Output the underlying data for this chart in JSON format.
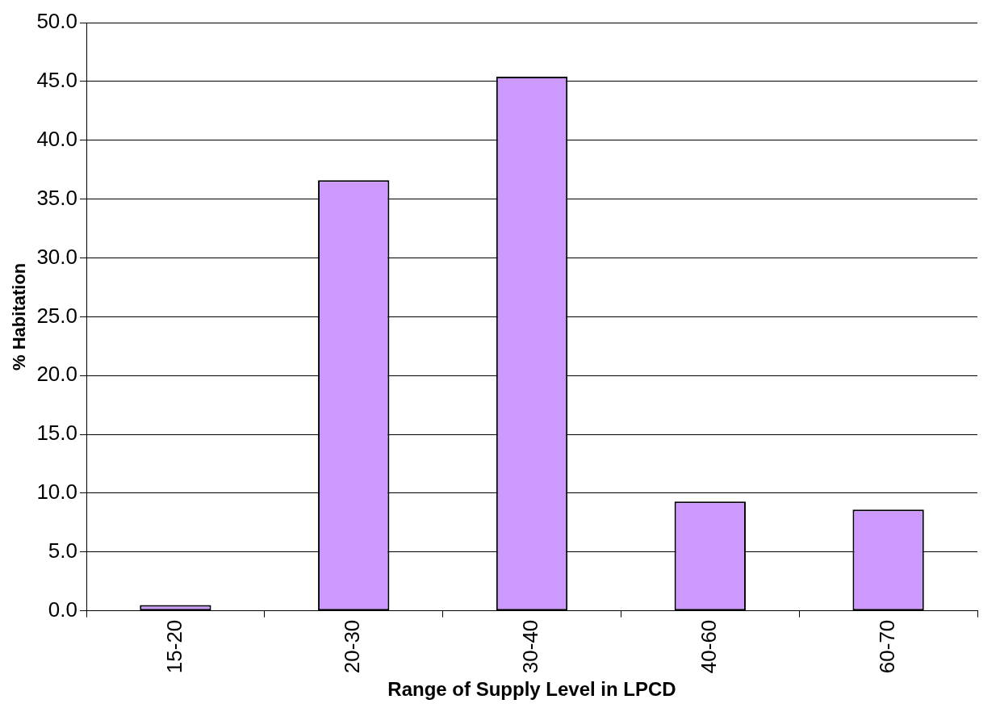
{
  "chart_data": {
    "type": "bar",
    "xlabel": "Range of Supply Level in LPCD",
    "ylabel": "% Habitation",
    "categories": [
      "15-20",
      "20-30",
      "30-40",
      "40-60",
      "60-70"
    ],
    "values": [
      0.5,
      36.6,
      45.4,
      9.3,
      8.6
    ],
    "color": "#cc99ff",
    "ylim": [
      0,
      50
    ],
    "yticks": [
      {
        "value": 0,
        "label": "0.0"
      },
      {
        "value": 5,
        "label": "5.0"
      },
      {
        "value": 10,
        "label": "10.0"
      },
      {
        "value": 15,
        "label": "15.0"
      },
      {
        "value": 20,
        "label": "20.0"
      },
      {
        "value": 25,
        "label": "25.0"
      },
      {
        "value": 30,
        "label": "30.0"
      },
      {
        "value": 35,
        "label": "35.0"
      },
      {
        "value": 40,
        "label": "40.0"
      },
      {
        "value": 45,
        "label": "45.0"
      },
      {
        "value": 50,
        "label": "50.0"
      }
    ],
    "grid": "y"
  }
}
